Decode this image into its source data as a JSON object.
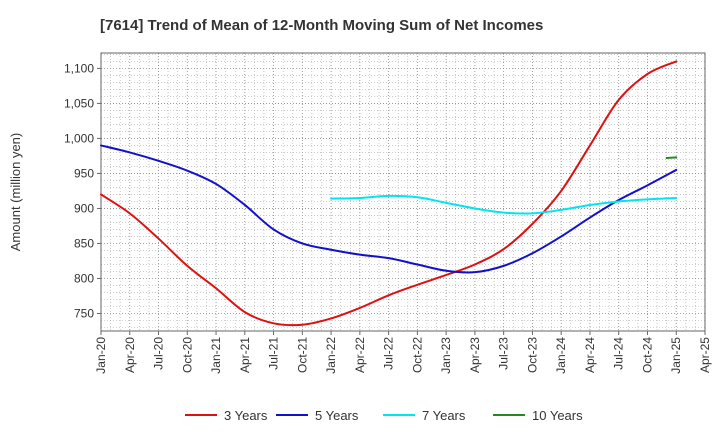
{
  "chart_data": {
    "type": "line",
    "title": "[7614]  Trend of Mean of 12-Month Moving Sum of Net Incomes",
    "xlabel": "",
    "ylabel": "Amount (million yen)",
    "ylim": [
      725,
      1122
    ],
    "y_ticks": [
      "750",
      "800",
      "850",
      "900",
      "950",
      "1,000",
      "1,050",
      "1,100"
    ],
    "y_tick_values": [
      750,
      800,
      850,
      900,
      950,
      1000,
      1050,
      1100
    ],
    "x_tick_labels": [
      "Jan-20",
      "Apr-20",
      "Jul-20",
      "Oct-20",
      "Jan-21",
      "Apr-21",
      "Jul-21",
      "Oct-21",
      "Jan-22",
      "Apr-22",
      "Jul-22",
      "Oct-22",
      "Jan-23",
      "Apr-23",
      "Jul-23",
      "Oct-23",
      "Jan-24",
      "Apr-24",
      "Jul-24",
      "Oct-24",
      "Jan-25",
      "Apr-25"
    ],
    "grid": true,
    "legend_position": "bottom",
    "series": [
      {
        "name": "3 Years",
        "color": "#dd1111",
        "points": [
          [
            "Jan-20",
            920
          ],
          [
            "Apr-20",
            893
          ],
          [
            "Jul-20",
            857
          ],
          [
            "Oct-20",
            818
          ],
          [
            "Jan-21",
            786
          ],
          [
            "Apr-21",
            752
          ],
          [
            "Jul-21",
            736
          ],
          [
            "Oct-21",
            734
          ],
          [
            "Jan-22",
            743
          ],
          [
            "Apr-22",
            758
          ],
          [
            "Jul-22",
            776
          ],
          [
            "Oct-22",
            791
          ],
          [
            "Jan-23",
            805
          ],
          [
            "Apr-23",
            820
          ],
          [
            "Jul-23",
            842
          ],
          [
            "Oct-23",
            878
          ],
          [
            "Jan-24",
            925
          ],
          [
            "Apr-24",
            990
          ],
          [
            "Jul-24",
            1055
          ],
          [
            "Oct-24",
            1092
          ],
          [
            "Jan-25",
            1110
          ]
        ]
      },
      {
        "name": "5 Years",
        "color": "#1111cc",
        "points": [
          [
            "Jan-20",
            990
          ],
          [
            "Apr-20",
            980
          ],
          [
            "Jul-20",
            968
          ],
          [
            "Oct-20",
            954
          ],
          [
            "Jan-21",
            935
          ],
          [
            "Apr-21",
            905
          ],
          [
            "Jul-21",
            870
          ],
          [
            "Oct-21",
            850
          ],
          [
            "Jan-22",
            841
          ],
          [
            "Apr-22",
            834
          ],
          [
            "Jul-22",
            829
          ],
          [
            "Oct-22",
            820
          ],
          [
            "Jan-23",
            811
          ],
          [
            "Apr-23",
            809
          ],
          [
            "Jul-23",
            818
          ],
          [
            "Oct-23",
            836
          ],
          [
            "Jan-24",
            860
          ],
          [
            "Apr-24",
            887
          ],
          [
            "Jul-24",
            912
          ],
          [
            "Oct-24",
            933
          ],
          [
            "Jan-25",
            955
          ]
        ]
      },
      {
        "name": "7 Years",
        "color": "#00e5ee",
        "points": [
          [
            "Jan-22",
            914
          ],
          [
            "Apr-22",
            915
          ],
          [
            "Jul-22",
            918
          ],
          [
            "Oct-22",
            916
          ],
          [
            "Jan-23",
            908
          ],
          [
            "Apr-23",
            900
          ],
          [
            "Jul-23",
            894
          ],
          [
            "Oct-23",
            893
          ],
          [
            "Jan-24",
            898
          ],
          [
            "Apr-24",
            905
          ],
          [
            "Jul-24",
            910
          ],
          [
            "Oct-24",
            913
          ],
          [
            "Jan-25",
            915
          ]
        ]
      },
      {
        "name": "10 Years",
        "color": "#228822",
        "points": [
          [
            "Dec-24",
            972
          ],
          [
            "Jan-25",
            973
          ]
        ]
      }
    ]
  }
}
